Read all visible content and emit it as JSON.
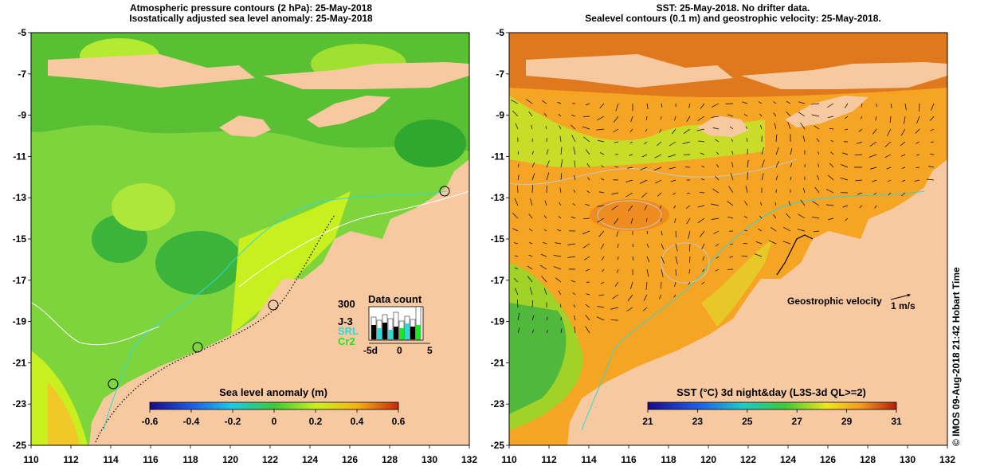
{
  "left_panel": {
    "title_line1": "Atmospheric pressure contours (2 hPa): 25-May-2018",
    "title_line2": "Isostatically adjusted sea level anomaly: 25-May-2018",
    "colorbar_title": "Sea level anomaly (m)",
    "colorbar_ticks": [
      "-0.6",
      "-0.4",
      "-0.2",
      "0",
      "0.2",
      "0.4",
      "0.6"
    ],
    "data_count_title": "Data count",
    "data_count_max": "300",
    "legend_j3": "J-3",
    "legend_srl": "SRL",
    "legend_cr2": "Cr2",
    "data_count_ticks": [
      "-5d",
      "0",
      "5"
    ]
  },
  "right_panel": {
    "title_line1": "SST: 25-May-2018. No drifter data.",
    "title_line2": "Sealevel contours (0.1 m) and geostrophic velocity: 25-May-2018.",
    "colorbar_title": "SST (°C) 3d night&day (L3S-3d QL>=2)",
    "colorbar_ticks": [
      "21",
      "23",
      "25",
      "27",
      "29",
      "31"
    ],
    "velocity_label": "Geostrophic velocity",
    "velocity_scale": "1 m/s"
  },
  "axes": {
    "y_ticks": [
      "-5",
      "-7",
      "-9",
      "-11",
      "-13",
      "-15",
      "-17",
      "-19",
      "-21",
      "-23",
      "-25"
    ],
    "x_ticks": [
      "110",
      "112",
      "114",
      "116",
      "118",
      "120",
      "122",
      "124",
      "126",
      "128",
      "130",
      "132"
    ]
  },
  "credit": "© IMOS 09-Aug-2018 21:42 Hobart Time",
  "colors": {
    "land": "#f7c9a0",
    "ocean_green": "#78d23c",
    "sst_orange": "#f5a020"
  }
}
